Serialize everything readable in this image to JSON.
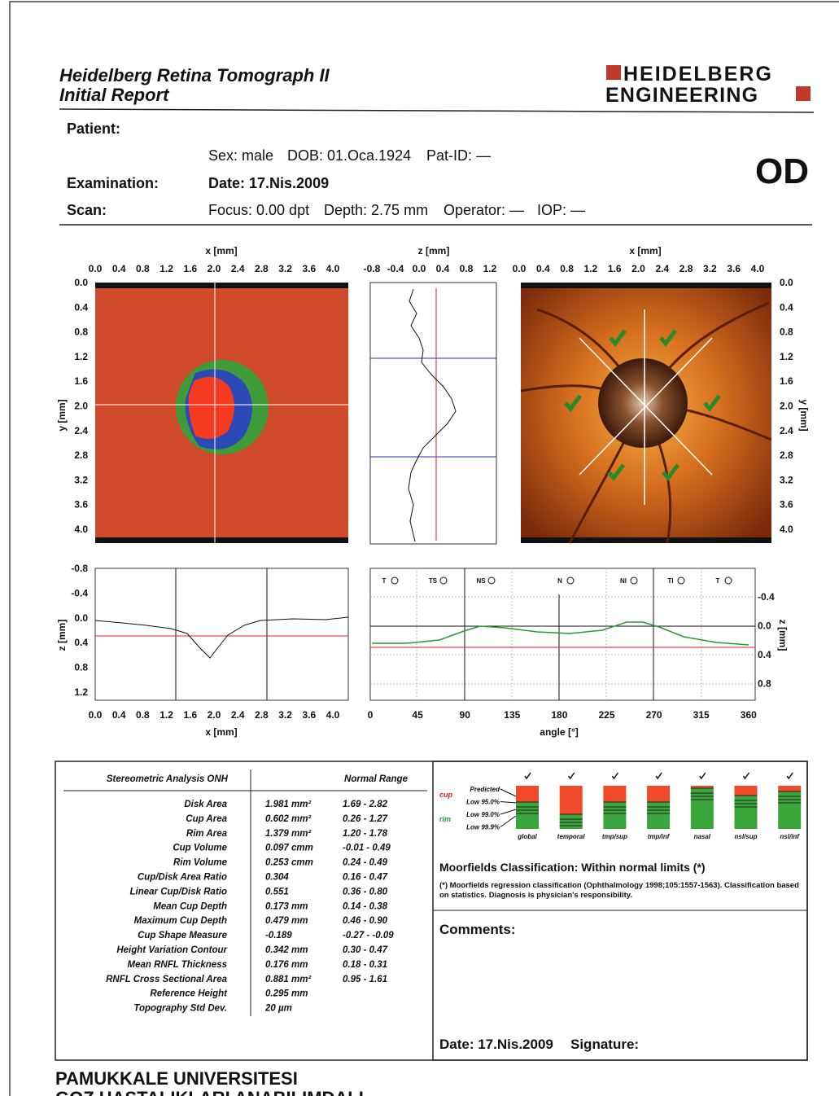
{
  "header": {
    "title": "Heidelberg Retina Tomograph II",
    "subtitle": "Initial Report",
    "brand_top": "HEIDELBERG",
    "brand_bottom": "ENGINEERING"
  },
  "patient": {
    "label": "Patient:",
    "sex": "Sex: male",
    "dob": "DOB: 01.Oca.1924",
    "pat_id": "Pat-ID: —",
    "eye": "OD"
  },
  "examination": {
    "label": "Examination:",
    "date": "Date: 17.Nis.2009"
  },
  "scan": {
    "label": "Scan:",
    "focus": "Focus: 0.00 dpt",
    "depth": "Depth: 2.75 mm",
    "operator": "Operator: —",
    "iop": "IOP: —"
  },
  "topography": {
    "x_label": "x [mm]",
    "y_label": "y [mm]",
    "x_ticks": [
      "0.0",
      "0.4",
      "0.8",
      "1.2",
      "1.6",
      "2.0",
      "2.4",
      "2.8",
      "3.2",
      "3.6",
      "4.0"
    ],
    "y_ticks": [
      "0.0",
      "0.4",
      "0.8",
      "1.2",
      "1.6",
      "2.0",
      "2.4",
      "2.8",
      "3.2",
      "3.6",
      "4.0"
    ]
  },
  "profile": {
    "z_label": "z [mm]",
    "z_ticks": [
      "-0.8",
      "-0.4",
      "0.0",
      "0.4",
      "0.8",
      "1.2"
    ]
  },
  "reflectance": {
    "x_label": "x [mm]",
    "y_label": "y [mm]",
    "x_ticks": [
      "0.0",
      "0.4",
      "0.8",
      "1.2",
      "1.6",
      "2.0",
      "2.4",
      "2.8",
      "3.2",
      "3.6",
      "4.0"
    ],
    "y_ticks": [
      "0.0",
      "0.4",
      "0.8",
      "1.2",
      "1.6",
      "2.0",
      "2.4",
      "2.8",
      "3.2",
      "3.6",
      "4.0"
    ]
  },
  "height_profile": {
    "x_label": "x [mm]",
    "z_label": "z [mm]",
    "x_ticks": [
      "0.0",
      "0.4",
      "0.8",
      "1.2",
      "1.6",
      "2.0",
      "2.4",
      "2.8",
      "3.2",
      "3.6",
      "4.0"
    ],
    "z_ticks": [
      "-0.8",
      "-0.4",
      "0.0",
      "0.4",
      "0.8",
      "1.2"
    ]
  },
  "contour": {
    "sectors": [
      "T",
      "TS",
      "NS",
      "N",
      "NI",
      "TI",
      "T"
    ],
    "angle_label": "angle [°]",
    "angle_ticks": [
      "0",
      "45",
      "90",
      "135",
      "180",
      "225",
      "270",
      "315",
      "360"
    ],
    "z_label": "z [mm]",
    "z_ticks": [
      "-0.4",
      "0.0",
      "0.4",
      "0.8"
    ]
  },
  "analysis": {
    "title": "Stereometric Analysis ONH",
    "normal_range_label": "Normal Range",
    "rows": [
      {
        "parameter": "Disk Area",
        "value": "1.981 mm²",
        "range": "1.69 - 2.82"
      },
      {
        "parameter": "Cup Area",
        "value": "0.602 mm²",
        "range": "0.26 - 1.27"
      },
      {
        "parameter": "Rim Area",
        "value": "1.379 mm²",
        "range": "1.20 - 1.78"
      },
      {
        "parameter": "Cup Volume",
        "value": "0.097 cmm",
        "range": "-0.01 - 0.49"
      },
      {
        "parameter": "Rim Volume",
        "value": "0.253 cmm",
        "range": "0.24 - 0.49"
      },
      {
        "parameter": "Cup/Disk Area Ratio",
        "value": "0.304",
        "range": "0.16 - 0.47"
      },
      {
        "parameter": "Linear Cup/Disk Ratio",
        "value": "0.551",
        "range": "0.36 - 0.80"
      },
      {
        "parameter": "Mean Cup Depth",
        "value": "0.173 mm",
        "range": "0.14 - 0.38"
      },
      {
        "parameter": "Maximum Cup Depth",
        "value": "0.479 mm",
        "range": "0.46 - 0.90"
      },
      {
        "parameter": "Cup Shape Measure",
        "value": "-0.189",
        "range": "-0.27 - -0.09"
      },
      {
        "parameter": "Height Variation Contour",
        "value": "0.342 mm",
        "range": "0.30 - 0.47"
      },
      {
        "parameter": "Mean RNFL Thickness",
        "value": "0.176 mm",
        "range": "0.18 - 0.31"
      },
      {
        "parameter": "RNFL Cross Sectional Area",
        "value": "0.881 mm²",
        "range": "0.95 - 1.61"
      },
      {
        "parameter": "Reference Height",
        "value": "0.295 mm"
      },
      {
        "parameter": "Topography Std Dev.",
        "value": "20 µm"
      }
    ]
  },
  "moorfields": {
    "cup_label": "cup",
    "rim_label": "rim",
    "levels": [
      "Predicted",
      "Low 95.0%",
      "Low 99.0%",
      "Low 99.9%"
    ],
    "sectors": [
      "global",
      "temporal",
      "tmp/sup",
      "tmp/inf",
      "nasal",
      "nsl/sup",
      "nsl/inf"
    ],
    "classification_label": "Moorfields Classification:",
    "classification": "Within normal limits (*)",
    "footnote": [
      "(*) Moorfields regression classification (Ophthalmology 1998;105:1557-1563). Classification based",
      "on statistics. Diagnosis is physician's responsibility."
    ]
  },
  "comments": {
    "label": "Comments:"
  },
  "signoff": {
    "date": "Date: 17.Nis.2009",
    "signature": "Signature:"
  },
  "footer": [
    "PAMUKKALE UNIVERSITESI",
    "GOZ HASTALIKLARI ANABILIMDALI"
  ]
}
